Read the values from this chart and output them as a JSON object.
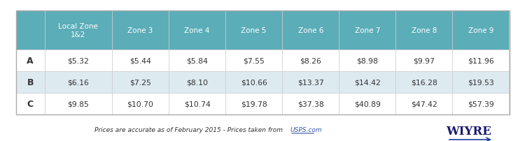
{
  "header_bg": "#5BADB8",
  "header_text_color": "#ffffff",
  "row_a_bg": "#ffffff",
  "row_b_bg": "#ddeaf0",
  "row_c_bg": "#ffffff",
  "border_color": "#cccccc",
  "text_color": "#333333",
  "col_headers": [
    "Local Zone\n1&2",
    "Zone 3",
    "Zone 4",
    "Zone 5",
    "Zone 6",
    "Zone 7",
    "Zone 8",
    "Zone 9"
  ],
  "row_labels": [
    "A",
    "B",
    "C"
  ],
  "data": [
    [
      "$5.32",
      "$5.44",
      "$5.84",
      "$7.55",
      "$8.26",
      "$8.98",
      "$9.97",
      "$11.96"
    ],
    [
      "$6.16",
      "$7.25",
      "$8.10",
      "$10.66",
      "$13.37",
      "$14.42",
      "$16.28",
      "$19.53"
    ],
    [
      "$9.85",
      "$10.70",
      "$10.74",
      "$19.78",
      "$37.38",
      "$40.89",
      "$47.42",
      "$57.39"
    ]
  ],
  "footer_text": "Prices are accurate as of February 2015 - Prices taken from ",
  "footer_link": "USPS.com",
  "footer_brand": "WIYRE",
  "fig_bg": "#ffffff",
  "outer_border_color": "#aaaaaa"
}
